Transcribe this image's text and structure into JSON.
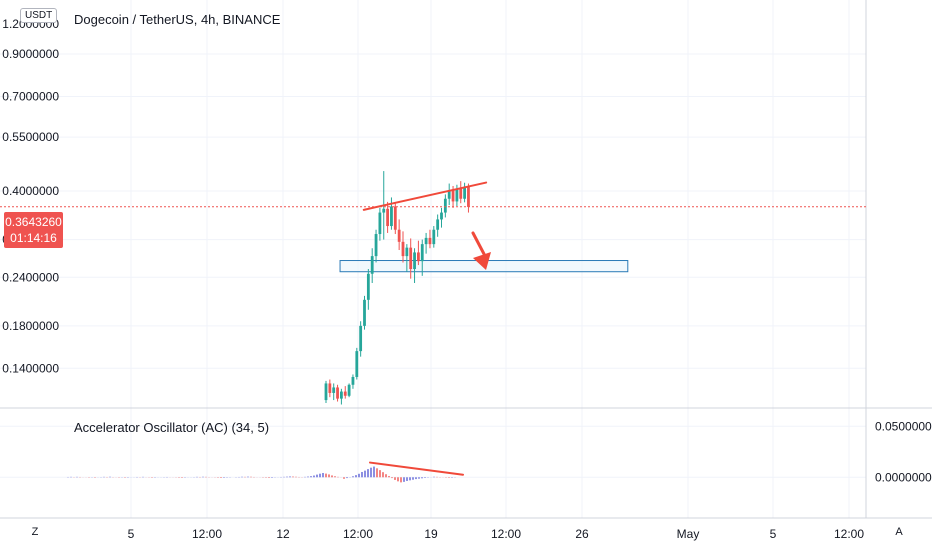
{
  "header": {
    "title": "Dogecoin / TetherUS, 4h, BINANCE",
    "currency": "USDT"
  },
  "price_axis": {
    "current_price": "0.3643260",
    "countdown": "01:14:16",
    "top_partial_label": "1.2000000"
  },
  "indicator": {
    "label": "Accelerator Oscillator (AC) (34, 5)"
  },
  "controls": {
    "left_corner": "Z",
    "right_corner": "A"
  },
  "colors": {
    "bull": "#26a69a",
    "bear": "#ef5350",
    "ac_up": "#5b5fd6",
    "ac_down": "#ef5350",
    "annotation": "#f0493a",
    "zone_border": "#2a7ab6",
    "zone_fill": "#e8f3fb",
    "current_price": "#ef5350"
  },
  "chart_data": [
    {
      "type": "candlestick",
      "title": "Dogecoin / TetherUS, 4h, BINANCE",
      "scale": "log",
      "y_ticks": [
        "0.9000000",
        "0.7000000",
        "0.5500000",
        "0.4000000",
        "0.3000000",
        "0.2400000",
        "0.1800000",
        "0.1400000"
      ],
      "x_ticks": [
        "5",
        "12:00",
        "12",
        "12:00",
        "19",
        "12:00",
        "26",
        "May",
        "5",
        "12:00"
      ],
      "ylim": [
        0.112,
        1.21
      ],
      "grid": true,
      "current_price": 0.364326,
      "candles": [
        {
          "o": 0.116,
          "h": 0.13,
          "l": 0.114,
          "c": 0.128
        },
        {
          "o": 0.128,
          "h": 0.131,
          "l": 0.118,
          "c": 0.121
        },
        {
          "o": 0.121,
          "h": 0.128,
          "l": 0.116,
          "c": 0.125
        },
        {
          "o": 0.125,
          "h": 0.127,
          "l": 0.115,
          "c": 0.117
        },
        {
          "o": 0.117,
          "h": 0.124,
          "l": 0.113,
          "c": 0.122
        },
        {
          "o": 0.122,
          "h": 0.126,
          "l": 0.117,
          "c": 0.119
        },
        {
          "o": 0.119,
          "h": 0.128,
          "l": 0.118,
          "c": 0.127
        },
        {
          "o": 0.127,
          "h": 0.135,
          "l": 0.124,
          "c": 0.133
        },
        {
          "o": 0.133,
          "h": 0.158,
          "l": 0.131,
          "c": 0.155
        },
        {
          "o": 0.155,
          "h": 0.185,
          "l": 0.15,
          "c": 0.18
        },
        {
          "o": 0.18,
          "h": 0.215,
          "l": 0.176,
          "c": 0.21
        },
        {
          "o": 0.21,
          "h": 0.252,
          "l": 0.198,
          "c": 0.245
        },
        {
          "o": 0.245,
          "h": 0.285,
          "l": 0.232,
          "c": 0.272
        },
        {
          "o": 0.272,
          "h": 0.318,
          "l": 0.262,
          "c": 0.31
        },
        {
          "o": 0.31,
          "h": 0.362,
          "l": 0.298,
          "c": 0.352
        },
        {
          "o": 0.352,
          "h": 0.45,
          "l": 0.3,
          "c": 0.36
        },
        {
          "o": 0.36,
          "h": 0.375,
          "l": 0.312,
          "c": 0.325
        },
        {
          "o": 0.325,
          "h": 0.385,
          "l": 0.318,
          "c": 0.365
        },
        {
          "o": 0.365,
          "h": 0.372,
          "l": 0.31,
          "c": 0.318
        },
        {
          "o": 0.318,
          "h": 0.338,
          "l": 0.282,
          "c": 0.296
        },
        {
          "o": 0.296,
          "h": 0.315,
          "l": 0.262,
          "c": 0.272
        },
        {
          "o": 0.272,
          "h": 0.292,
          "l": 0.248,
          "c": 0.286
        },
        {
          "o": 0.286,
          "h": 0.302,
          "l": 0.238,
          "c": 0.252
        },
        {
          "o": 0.252,
          "h": 0.285,
          "l": 0.232,
          "c": 0.278
        },
        {
          "o": 0.278,
          "h": 0.298,
          "l": 0.258,
          "c": 0.264
        },
        {
          "o": 0.264,
          "h": 0.3,
          "l": 0.242,
          "c": 0.292
        },
        {
          "o": 0.292,
          "h": 0.312,
          "l": 0.276,
          "c": 0.303
        },
        {
          "o": 0.303,
          "h": 0.318,
          "l": 0.285,
          "c": 0.292
        },
        {
          "o": 0.292,
          "h": 0.325,
          "l": 0.286,
          "c": 0.318
        },
        {
          "o": 0.318,
          "h": 0.348,
          "l": 0.305,
          "c": 0.338
        },
        {
          "o": 0.338,
          "h": 0.362,
          "l": 0.322,
          "c": 0.352
        },
        {
          "o": 0.352,
          "h": 0.392,
          "l": 0.342,
          "c": 0.382
        },
        {
          "o": 0.382,
          "h": 0.418,
          "l": 0.368,
          "c": 0.402
        },
        {
          "o": 0.402,
          "h": 0.412,
          "l": 0.362,
          "c": 0.376
        },
        {
          "o": 0.376,
          "h": 0.415,
          "l": 0.366,
          "c": 0.405
        },
        {
          "o": 0.405,
          "h": 0.424,
          "l": 0.372,
          "c": 0.382
        },
        {
          "o": 0.382,
          "h": 0.42,
          "l": 0.374,
          "c": 0.41
        },
        {
          "o": 0.41,
          "h": 0.418,
          "l": 0.352,
          "c": 0.364
        }
      ],
      "annotations": [
        {
          "type": "trendline",
          "from": {
            "bar": 15,
            "price": 0.362
          },
          "to": {
            "bar": 39,
            "price": 0.418
          }
        },
        {
          "type": "arrow",
          "direction": "down"
        },
        {
          "type": "zone",
          "from_bar": 13,
          "to_bar": 68,
          "price_top": 0.265,
          "price_bottom": 0.248
        }
      ]
    },
    {
      "type": "bar",
      "title": "Accelerator Oscillator (AC) (34, 5)",
      "y_ticks": [
        "0.0500000",
        "0.0000000"
      ],
      "ylim": [
        -0.038,
        0.066
      ],
      "grid": true,
      "values": [
        0.0003,
        0.0004,
        0.0002,
        0.0004,
        0.0003,
        0.0001,
        -0.0001,
        -0.0003,
        -0.0002,
        -0.0004,
        -0.0001,
        0.0002,
        0.0004,
        0.0003,
        0.0005,
        0.0002,
        -0.0001,
        -0.0003,
        -0.0002,
        -0.0004,
        -0.0003,
        -0.0001,
        0.0001,
        0.0003,
        0.0002,
        0.0004,
        0.0001,
        -0.0002,
        -0.0004,
        -0.0003,
        -0.0001,
        0.0001,
        0.0002,
        0.0003,
        0.0001,
        -0.0001,
        -0.0002,
        -0.0004,
        -0.0005,
        -0.0003,
        -0.0001,
        0.0001,
        0.0002,
        0.0004,
        0.0003,
        0.0005,
        0.0004,
        0.0002,
        0.0001,
        -0.0002,
        -0.0004,
        -0.0006,
        -0.0005,
        -0.0003,
        -0.0002,
        0.0,
        0.0002,
        0.0003,
        0.0005,
        0.0004,
        0.0006,
        0.0005,
        0.0003,
        0.0001,
        -0.0001,
        -0.0003,
        -0.0004,
        -0.0006,
        -0.0005,
        -0.0002,
        0.0001,
        0.0003,
        0.0004,
        0.0006,
        0.0008,
        0.0007,
        0.0005,
        0.0003,
        0.0002,
        0.0004,
        0.0007,
        0.0011,
        0.0017,
        0.0026,
        0.0035,
        0.0042,
        0.0036,
        0.0028,
        0.0018,
        0.001,
        0.0004,
        0.0001,
        -0.0015,
        -0.0008,
        0.0002,
        0.001,
        0.0021,
        0.0034,
        0.0052,
        0.0065,
        0.008,
        0.0094,
        0.0105,
        0.0088,
        0.007,
        0.005,
        0.003,
        0.0012,
        -0.0008,
        -0.0026,
        -0.004,
        -0.005,
        -0.0045,
        -0.0036,
        -0.003,
        -0.0024,
        -0.0018,
        -0.0014,
        -0.001,
        -0.0006,
        -0.0003,
        0.0001,
        0.0005,
        0.0004,
        0.0002,
        -0.0001,
        -0.0003,
        -0.0005,
        -0.0004,
        -0.0002
      ]
    }
  ]
}
